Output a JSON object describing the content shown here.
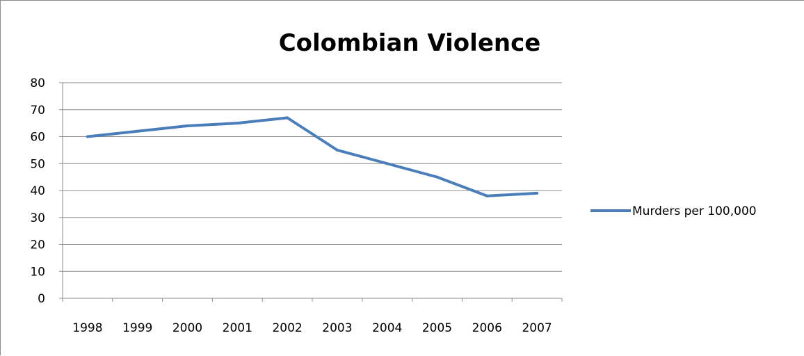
{
  "chart_data": {
    "type": "line",
    "title": "Colombian Violence",
    "xlabel": "",
    "ylabel": "",
    "categories": [
      "1998",
      "1999",
      "2000",
      "2001",
      "2002",
      "2003",
      "2004",
      "2005",
      "2006",
      "2007"
    ],
    "series": [
      {
        "name": "Murders per 100,000",
        "values": [
          60,
          62,
          64,
          65,
          67,
          55,
          50,
          45,
          38,
          39
        ],
        "color": "#4a7ebb"
      }
    ],
    "ylim": [
      0,
      80
    ],
    "yticks": [
      "0",
      "10",
      "20",
      "30",
      "40",
      "50",
      "60",
      "70",
      "80"
    ],
    "grid": true,
    "legend_position": "right"
  }
}
